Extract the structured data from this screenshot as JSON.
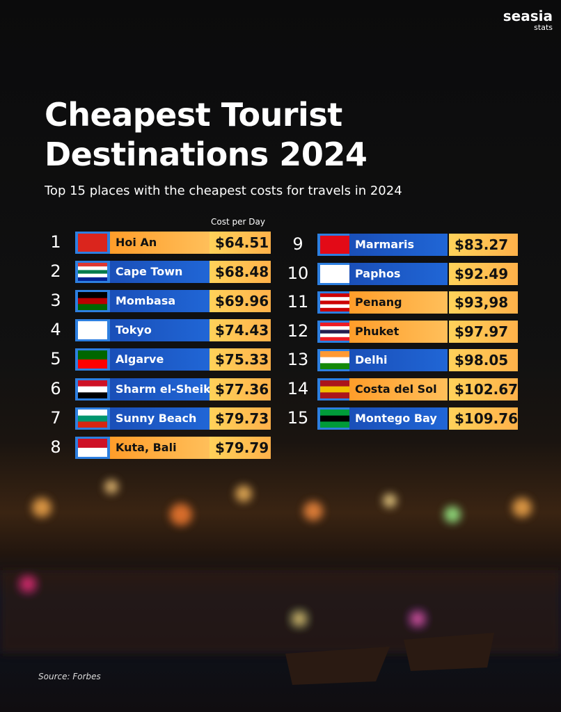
{
  "brand": {
    "name": "seasia",
    "sub": "stats"
  },
  "header": {
    "title_line1": "Cheapest Tourist",
    "title_line2": "Destinations 2024",
    "subtitle": "Top 15 places with the cheapest costs for travels in 2024"
  },
  "table": {
    "column_header": "Cost per Day",
    "rows": [
      {
        "rank": 1,
        "name": "Hoi An",
        "cost": "$64.51"
      },
      {
        "rank": 2,
        "name": "Cape Town",
        "cost": "$68.48"
      },
      {
        "rank": 3,
        "name": "Mombasa",
        "cost": "$69.96"
      },
      {
        "rank": 4,
        "name": "Tokyo",
        "cost": "$74.43"
      },
      {
        "rank": 5,
        "name": "Algarve",
        "cost": "$75.33"
      },
      {
        "rank": 6,
        "name": "Sharm el-Sheikh",
        "cost": "$77.36"
      },
      {
        "rank": 7,
        "name": "Sunny Beach",
        "cost": "$79.73"
      },
      {
        "rank": 8,
        "name": "Kuta, Bali",
        "cost": "$79.79"
      },
      {
        "rank": 9,
        "name": "Marmaris",
        "cost": "$83.27"
      },
      {
        "rank": 10,
        "name": "Paphos",
        "cost": "$92.49"
      },
      {
        "rank": 11,
        "name": "Penang",
        "cost": "$93,98"
      },
      {
        "rank": 12,
        "name": "Phuket",
        "cost": "$97.97"
      },
      {
        "rank": 13,
        "name": "Delhi",
        "cost": "$98.05"
      },
      {
        "rank": 14,
        "name": "Costa del Sol",
        "cost": "$102.67"
      },
      {
        "rank": 15,
        "name": "Montego Bay",
        "cost": "$109.76"
      }
    ]
  },
  "footer": {
    "source": "Source: Forbes"
  }
}
